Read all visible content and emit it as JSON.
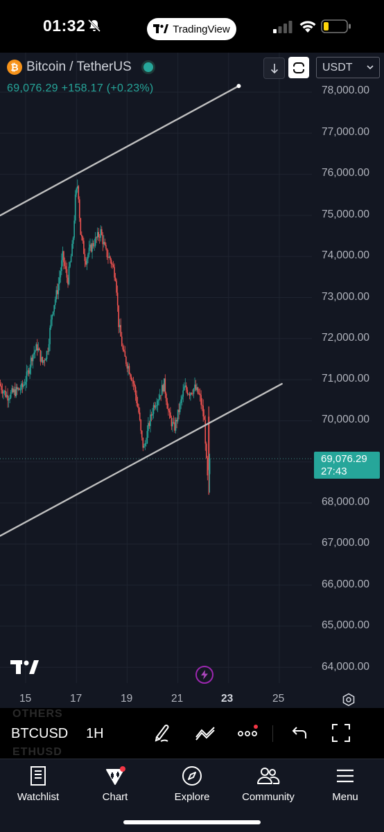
{
  "status_bar": {
    "time": "01:32",
    "app_pill": "TradingView"
  },
  "chart_header": {
    "pair": "Bitcoin / TetherUS",
    "price": "69,076.29",
    "change": "+158.17",
    "change_pct": "(+0.23%)",
    "currency": "USDT"
  },
  "price_axis": {
    "labels": [
      "78,000.00",
      "77,000.00",
      "76,000.00",
      "75,000.00",
      "74,000.00",
      "73,000.00",
      "72,000.00",
      "71,000.00",
      "70,000.00",
      "68,000.00",
      "67,000.00",
      "66,000.00",
      "65,000.00",
      "64,000.00"
    ],
    "current_price": "69,076.29",
    "countdown": "27:43"
  },
  "time_axis": {
    "labels": [
      "15",
      "17",
      "19",
      "21",
      "23",
      "25"
    ]
  },
  "toolbar": {
    "symbol": "BTCUSD",
    "interval": "1H",
    "ghost_above": "OTHERS",
    "ghost_below": "ETHUSD"
  },
  "tabs": [
    {
      "label": "Watchlist",
      "icon": "book-icon"
    },
    {
      "label": "Chart",
      "icon": "chart-icon"
    },
    {
      "label": "Explore",
      "icon": "compass-icon"
    },
    {
      "label": "Community",
      "icon": "people-icon"
    },
    {
      "label": "Menu",
      "icon": "hamburger-icon"
    }
  ],
  "colors": {
    "up": "#26a69a",
    "down": "#ef5350",
    "background": "#131722",
    "trendline": "#c0c0c0"
  },
  "chart_data": {
    "type": "candlestick",
    "symbol": "BTCUSD",
    "interval": "1H",
    "x_tick_labels": [
      "15",
      "17",
      "19",
      "21",
      "23",
      "25"
    ],
    "y_range": [
      63700,
      78500
    ],
    "trendlines": [
      {
        "from_day": 14.0,
        "from_price": 75000,
        "to_day": 23.4,
        "to_price": 78150
      },
      {
        "from_day": 14.0,
        "from_price": 67200,
        "to_day": 25.1,
        "to_price": 70900
      }
    ],
    "price_path": [
      {
        "day": 14.0,
        "price": 70900
      },
      {
        "day": 14.3,
        "price": 70600
      },
      {
        "day": 14.6,
        "price": 70700
      },
      {
        "day": 14.9,
        "price": 70800
      },
      {
        "day": 15.1,
        "price": 71100
      },
      {
        "day": 15.3,
        "price": 71600
      },
      {
        "day": 15.5,
        "price": 71800
      },
      {
        "day": 15.7,
        "price": 71400
      },
      {
        "day": 15.9,
        "price": 71700
      },
      {
        "day": 16.1,
        "price": 72700
      },
      {
        "day": 16.3,
        "price": 73200
      },
      {
        "day": 16.5,
        "price": 74000
      },
      {
        "day": 16.7,
        "price": 73400
      },
      {
        "day": 16.9,
        "price": 74300
      },
      {
        "day": 17.0,
        "price": 75400
      },
      {
        "day": 17.1,
        "price": 75800
      },
      {
        "day": 17.2,
        "price": 74600
      },
      {
        "day": 17.4,
        "price": 73900
      },
      {
        "day": 17.6,
        "price": 74200
      },
      {
        "day": 17.8,
        "price": 74400
      },
      {
        "day": 18.0,
        "price": 74600
      },
      {
        "day": 18.2,
        "price": 74100
      },
      {
        "day": 18.4,
        "price": 73900
      },
      {
        "day": 18.6,
        "price": 73500
      },
      {
        "day": 18.7,
        "price": 72400
      },
      {
        "day": 18.9,
        "price": 71600
      },
      {
        "day": 19.1,
        "price": 71300
      },
      {
        "day": 19.3,
        "price": 70900
      },
      {
        "day": 19.5,
        "price": 70200
      },
      {
        "day": 19.6,
        "price": 69600
      },
      {
        "day": 19.7,
        "price": 69300
      },
      {
        "day": 19.9,
        "price": 69900
      },
      {
        "day": 20.1,
        "price": 70400
      },
      {
        "day": 20.3,
        "price": 70600
      },
      {
        "day": 20.5,
        "price": 70900
      },
      {
        "day": 20.7,
        "price": 70100
      },
      {
        "day": 20.9,
        "price": 69800
      },
      {
        "day": 21.1,
        "price": 70300
      },
      {
        "day": 21.3,
        "price": 70800
      },
      {
        "day": 21.5,
        "price": 70700
      },
      {
        "day": 21.7,
        "price": 70800
      },
      {
        "day": 21.9,
        "price": 70600
      },
      {
        "day": 22.0,
        "price": 70300
      },
      {
        "day": 22.1,
        "price": 69900
      },
      {
        "day": 22.2,
        "price": 68500
      },
      {
        "day": 22.25,
        "price": 69076
      }
    ],
    "last_price": 69076.29
  }
}
